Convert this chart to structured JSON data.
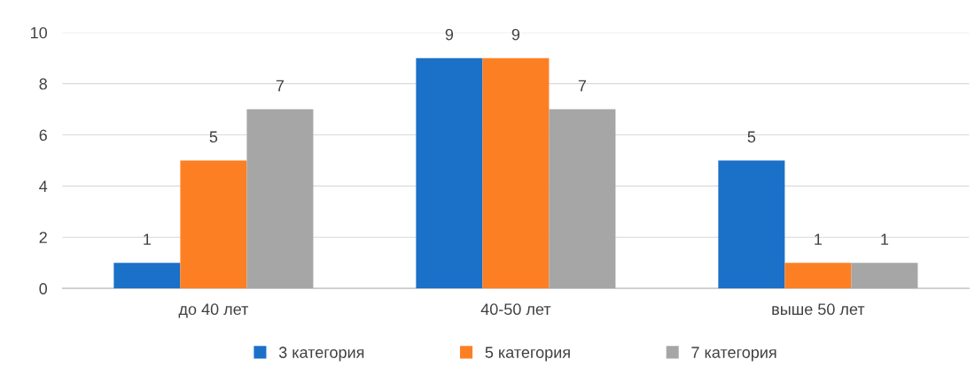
{
  "chart_data": {
    "type": "bar",
    "categories": [
      "до 40 лет",
      "40-50 лет",
      "выше 50 лет"
    ],
    "series": [
      {
        "name": "3 категория",
        "color": "#1b70c8",
        "values": [
          1,
          9,
          5
        ]
      },
      {
        "name": "5 категория",
        "color": "#fd7f23",
        "values": [
          5,
          9,
          1
        ]
      },
      {
        "name": "7 категория",
        "color": "#a6a6a6",
        "values": [
          7,
          7,
          1
        ]
      }
    ],
    "ylim": [
      0,
      10
    ],
    "yticks": [
      0,
      2,
      4,
      6,
      8,
      10
    ],
    "grid": "y",
    "legend": "bottom",
    "data_labels": true
  }
}
